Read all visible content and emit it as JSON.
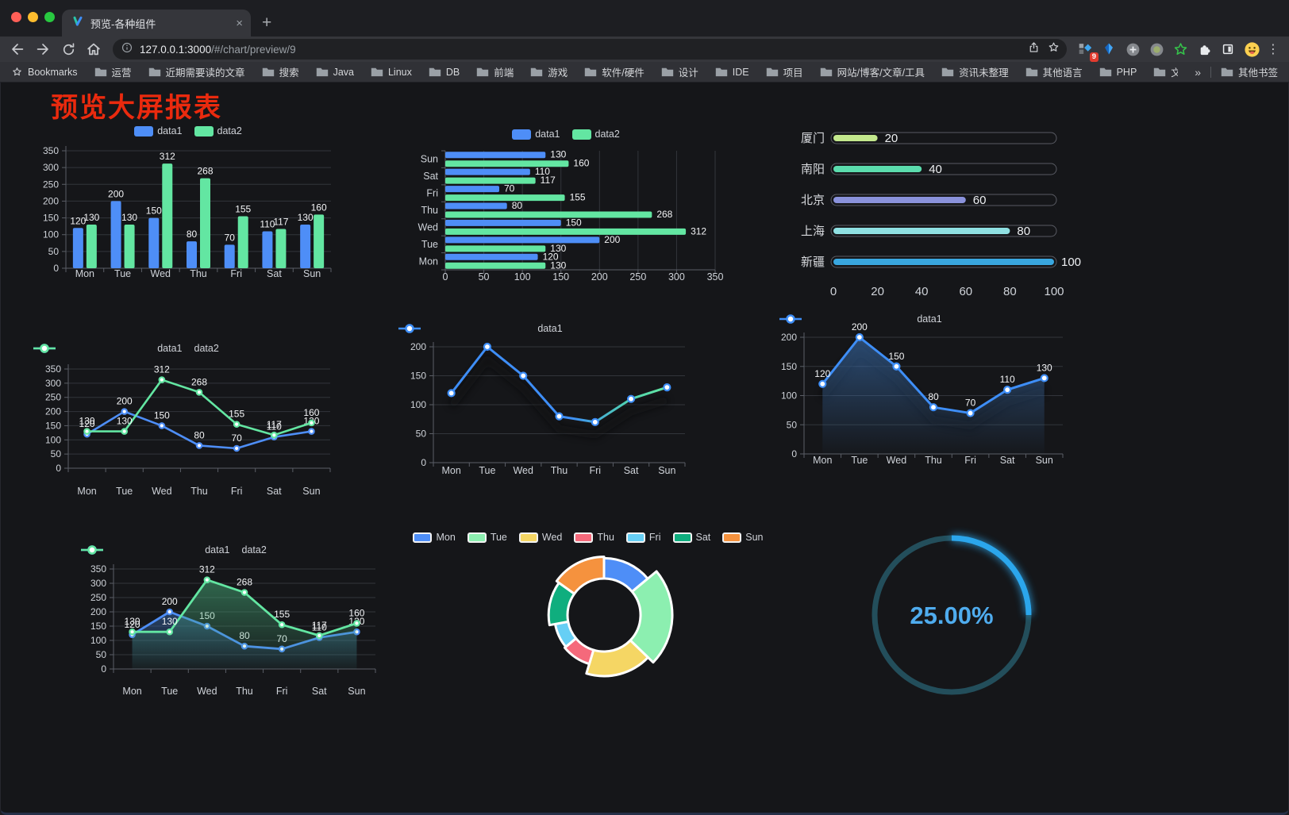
{
  "browser": {
    "traffic_lights": {
      "close": "#FF5F57",
      "minimize": "#FEBC2E",
      "zoom": "#28C840"
    },
    "tab": {
      "title": "预览-各种组件",
      "close_glyph": "×",
      "new_tab_glyph": "+"
    },
    "url": {
      "host": "127.0.0.1:3000",
      "path": "/#/chart/preview/9"
    },
    "extension_badge": "9",
    "menu_glyph": "⋮",
    "bookmarks_label": "Bookmarks",
    "bookmarks": [
      "运营",
      "近期需要读的文章",
      "搜索",
      "Java",
      "Linux",
      "DB",
      "前端",
      "游戏",
      "软件/硬件",
      "设计",
      "IDE",
      "项目",
      "网站/博客/文章/工具",
      "资讯未整理",
      "其他语言",
      "PHP",
      "文件服务器"
    ],
    "bookmarks_overflow": "»",
    "other_bookmarks": "其他书签"
  },
  "page": {
    "title": "预览大屏报表",
    "title_color": "#EA2A0E"
  },
  "chart_data": [
    {
      "id": "bar-grouped",
      "type": "bar",
      "categories": [
        "Mon",
        "Tue",
        "Wed",
        "Thu",
        "Fri",
        "Sat",
        "Sun"
      ],
      "series": [
        {
          "name": "data1",
          "color": "#4E8EF7",
          "values": [
            120,
            200,
            150,
            80,
            70,
            110,
            130
          ]
        },
        {
          "name": "data2",
          "color": "#63E6A2",
          "values": [
            130,
            130,
            312,
            268,
            155,
            117,
            160
          ]
        }
      ],
      "ylim": [
        0,
        350
      ],
      "ytick_step": 50,
      "labels": true
    },
    {
      "id": "hbar-grouped",
      "type": "hbar",
      "categories": [
        "Mon",
        "Tue",
        "Wed",
        "Thu",
        "Fri",
        "Sat",
        "Sun"
      ],
      "series": [
        {
          "name": "data1",
          "color": "#4E8EF7",
          "values": [
            120,
            200,
            150,
            80,
            70,
            110,
            130
          ]
        },
        {
          "name": "data2",
          "color": "#63E6A2",
          "values": [
            130,
            130,
            312,
            268,
            155,
            117,
            160
          ]
        }
      ],
      "xlim": [
        0,
        350
      ],
      "xtick_step": 50,
      "labels": true
    },
    {
      "id": "progress-bars",
      "type": "progress",
      "max": 100,
      "xticks": [
        0,
        20,
        40,
        60,
        80,
        100
      ],
      "items": [
        {
          "label": "厦门",
          "value": 20,
          "color": "#C3E88D"
        },
        {
          "label": "南阳",
          "value": 40,
          "color": "#5BDCAD"
        },
        {
          "label": "北京",
          "value": 60,
          "color": "#8A92DB"
        },
        {
          "label": "上海",
          "value": 80,
          "color": "#8FE0E2"
        },
        {
          "label": "新疆",
          "value": 100,
          "color": "#39A7E0"
        }
      ]
    },
    {
      "id": "line-two",
      "type": "line",
      "categories": [
        "Mon",
        "Tue",
        "Wed",
        "Thu",
        "Fri",
        "Sat",
        "Sun"
      ],
      "series": [
        {
          "name": "data1",
          "color": "#4E8EF7",
          "values": [
            120,
            200,
            150,
            80,
            70,
            110,
            130
          ]
        },
        {
          "name": "data2",
          "color": "#63E6A2",
          "values": [
            130,
            130,
            312,
            268,
            155,
            117,
            160
          ]
        }
      ],
      "ylim": [
        0,
        350
      ],
      "ytick_step": 50,
      "labels": true
    },
    {
      "id": "line-gradient",
      "type": "line",
      "categories": [
        "Mon",
        "Tue",
        "Wed",
        "Thu",
        "Fri",
        "Sat",
        "Sun"
      ],
      "series": [
        {
          "name": "data1",
          "color": "#3E8EF7",
          "values": [
            120,
            200,
            150,
            80,
            70,
            110,
            130
          ],
          "gradient": [
            {
              "offset": 0,
              "color": "#3E8EF7"
            },
            {
              "offset": 0.55,
              "color": "#3E8EF7"
            },
            {
              "offset": 0.82,
              "color": "#50D2B0"
            },
            {
              "offset": 1,
              "color": "#63E6A2"
            }
          ]
        }
      ],
      "ylim": [
        0,
        200
      ],
      "ytick_step": 50,
      "labels": false
    },
    {
      "id": "area-single",
      "type": "area",
      "categories": [
        "Mon",
        "Tue",
        "Wed",
        "Thu",
        "Fri",
        "Sat",
        "Sun"
      ],
      "series": [
        {
          "name": "data1",
          "color": "#3E8EF7",
          "values": [
            120,
            200,
            150,
            80,
            70,
            110,
            130
          ],
          "area_from": "rgba(62,120,190,0.55)",
          "area_to": "rgba(62,120,190,0.02)"
        }
      ],
      "ylim": [
        0,
        200
      ],
      "ytick_step": 50,
      "labels": true
    },
    {
      "id": "area-two",
      "type": "area",
      "categories": [
        "Mon",
        "Tue",
        "Wed",
        "Thu",
        "Fri",
        "Sat",
        "Sun"
      ],
      "series": [
        {
          "name": "data1",
          "color": "#4E8EF7",
          "values": [
            120,
            200,
            150,
            80,
            70,
            110,
            130
          ],
          "area_from": "rgba(58,110,180,0.50)",
          "area_to": "rgba(58,110,180,0.03)"
        },
        {
          "name": "data2",
          "color": "#63E6A2",
          "values": [
            130,
            130,
            312,
            268,
            155,
            117,
            160
          ],
          "area_from": "rgba(70,170,120,0.55)",
          "area_to": "rgba(70,170,120,0.04)"
        }
      ],
      "ylim": [
        0,
        350
      ],
      "ytick_step": 50,
      "labels": true
    },
    {
      "id": "rose-pie",
      "type": "pie",
      "rose": true,
      "categories": [
        "Mon",
        "Tue",
        "Wed",
        "Thu",
        "Fri",
        "Sat",
        "Sun"
      ],
      "values": [
        120,
        200,
        150,
        80,
        70,
        110,
        130
      ],
      "colors": [
        "#4E8EF7",
        "#8CEFB0",
        "#F5D664",
        "#F5697B",
        "#66CFF5",
        "#0FAE7E",
        "#F5923E"
      ]
    },
    {
      "id": "gauge-progress",
      "type": "gauge",
      "percent": 25,
      "label": "25.00%",
      "color": "#2BA6EC",
      "track_color": "#234E5B",
      "text_color": "#4FACEE"
    }
  ]
}
